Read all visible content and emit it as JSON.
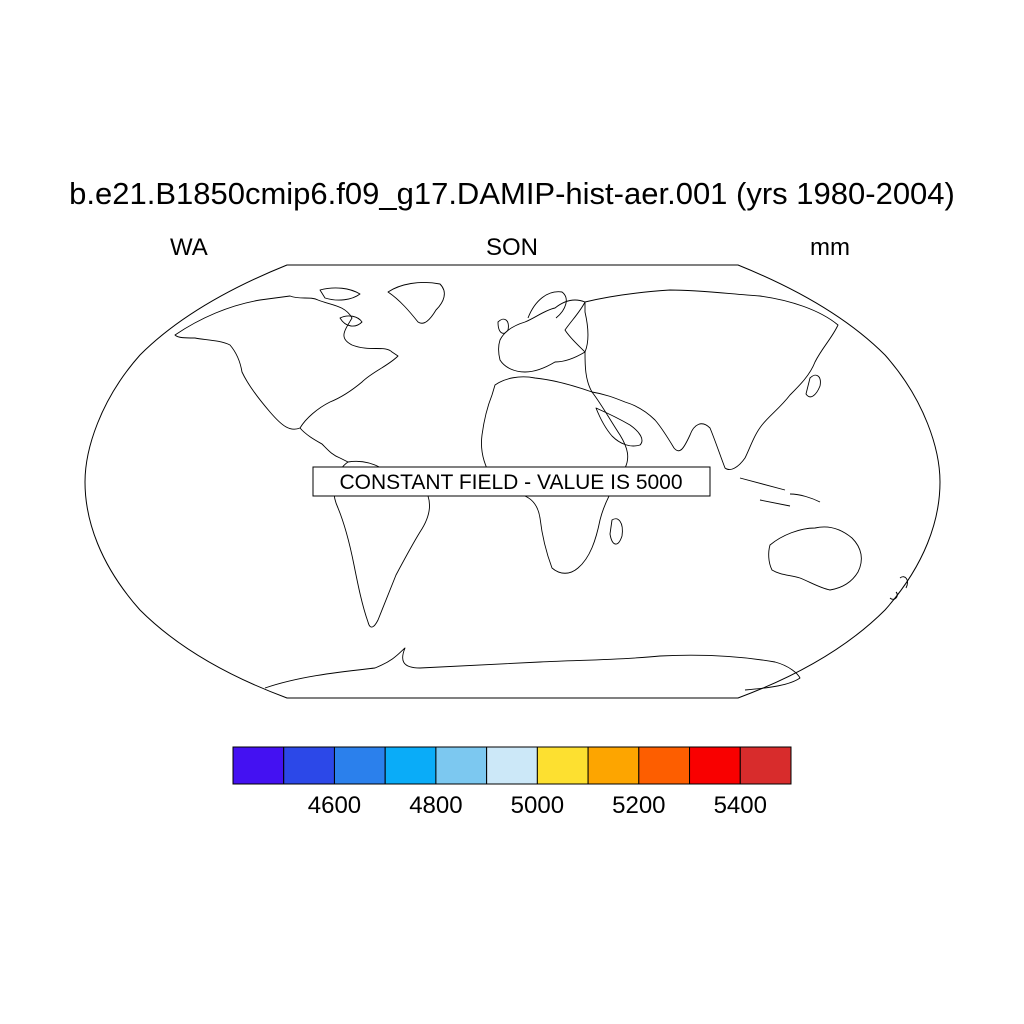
{
  "title": "b.e21.B1850cmip6.f09_g17.DAMIP-hist-aer.001 (yrs 1980-2004)",
  "left_label": "WA",
  "center_label": "SON",
  "right_label": "mm",
  "constant_field_text": "CONSTANT FIELD - VALUE IS 5000",
  "colorbar": {
    "colors": [
      "#4411f2",
      "#2c48e8",
      "#2b80ec",
      "#0aacf8",
      "#7cc8f0",
      "#cce8f8",
      "#fde030",
      "#fda500",
      "#fd5e00",
      "#f90000",
      "#d82c2c"
    ],
    "tick_labels": [
      "4600",
      "4800",
      "5000",
      "5200",
      "5400"
    ]
  }
}
